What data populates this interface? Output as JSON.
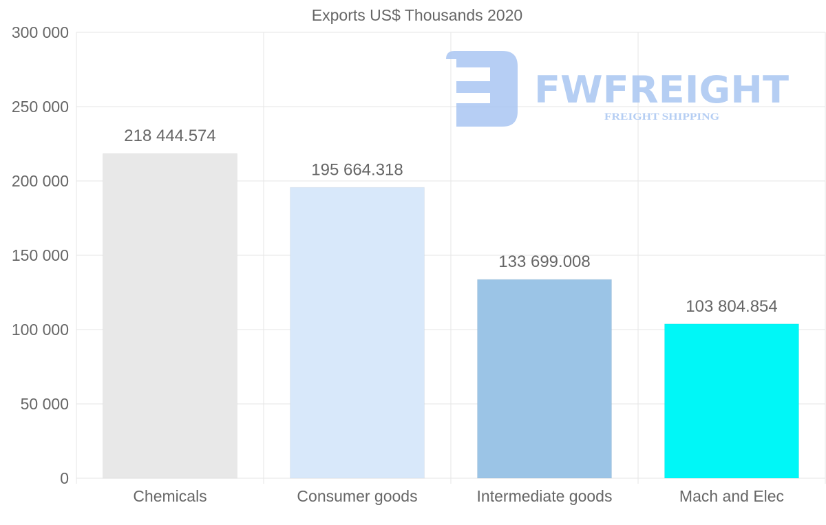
{
  "chart_data": {
    "type": "bar",
    "title": "Exports US$ Thousands 2020",
    "xlabel": "",
    "ylabel": "",
    "categories": [
      "Chemicals",
      "Consumer goods",
      "Intermediate goods",
      "Mach and Elec"
    ],
    "values": [
      218444.574,
      195664.318,
      133699.008,
      103804.854
    ],
    "value_labels": [
      "218 444.574",
      "195 664.318",
      "133 699.008",
      "103 804.854"
    ],
    "colors": [
      "#e8e8e8",
      "#d8e8fa",
      "#9bc4e6",
      "#00f7f7"
    ],
    "ylim": [
      0,
      300000
    ],
    "yticks": [
      0,
      50000,
      100000,
      150000,
      200000,
      250000,
      300000
    ],
    "ytick_labels": [
      "0",
      "50 000",
      "100 000",
      "150 000",
      "200 000",
      "250 000",
      "300 000"
    ],
    "grid": true,
    "legend": "none"
  },
  "watermark": {
    "brand": "FWFREIGHT",
    "tagline": "FREIGHT SHIPPING",
    "color": "#a9c6f2"
  }
}
